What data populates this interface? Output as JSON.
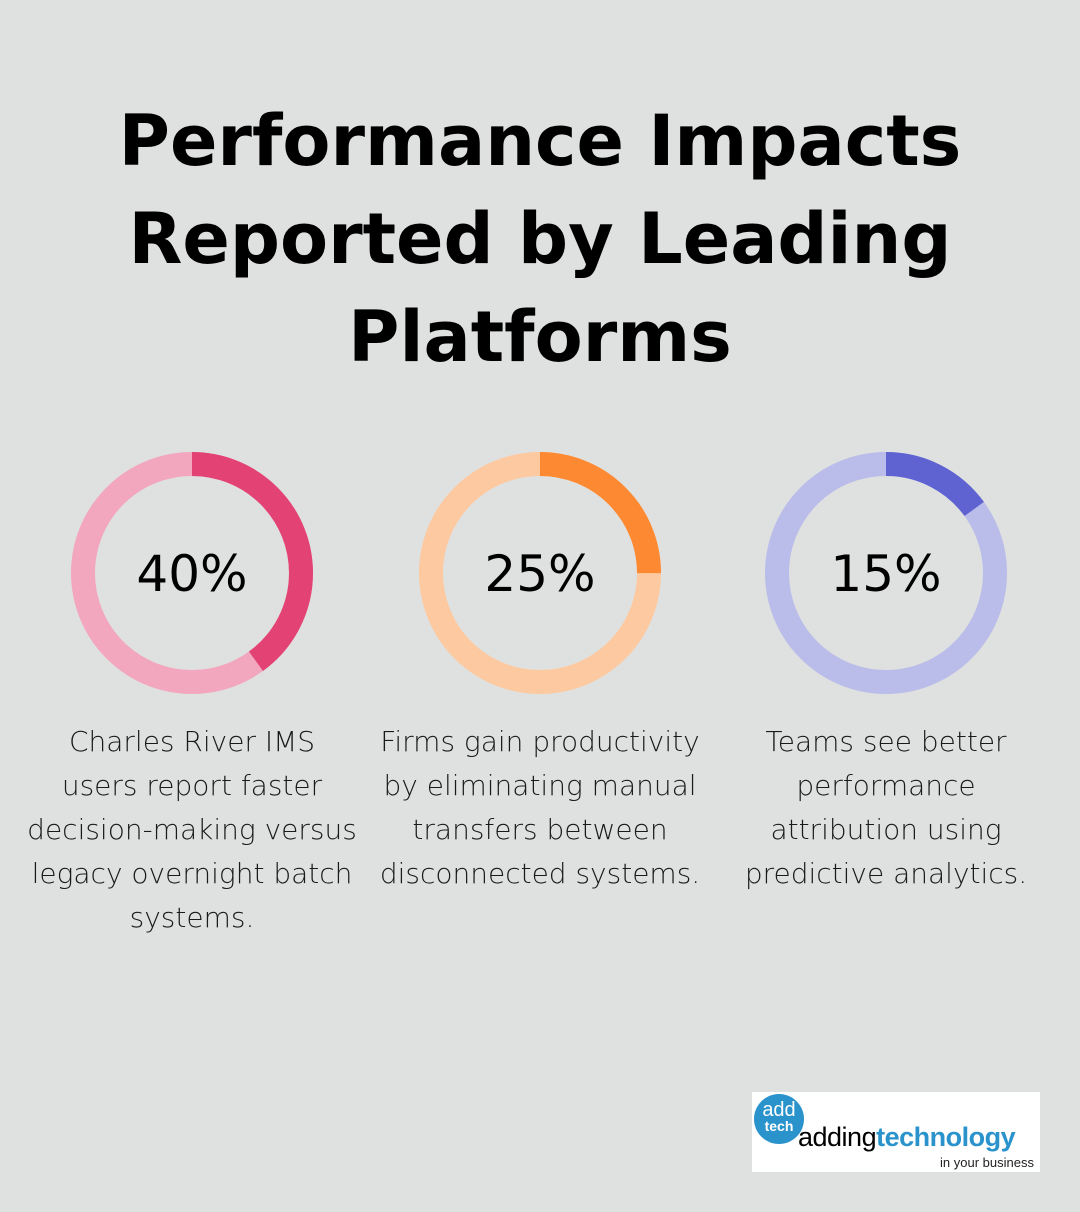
{
  "title": [
    "Performance Impacts",
    "Reported by Leading",
    "Platforms"
  ],
  "chart_data": [
    {
      "type": "pie",
      "variant": "donut",
      "value": 40,
      "label": "40%",
      "description": "Charles River IMS users report faster decision-making versus legacy overnight batch systems.",
      "color": "#e34275",
      "track_color": "#f2a7bf"
    },
    {
      "type": "pie",
      "variant": "donut",
      "value": 25,
      "label": "25%",
      "description": "Firms gain productivity by eliminating manual transfers between disconnected systems.",
      "color": "#fd8a32",
      "track_color": "#fdc9a0"
    },
    {
      "type": "pie",
      "variant": "donut",
      "value": 15,
      "label": "15%",
      "description": "Teams see better performance attribution using predictive analytics.",
      "color": "#5f63d1",
      "track_color": "#babce9"
    }
  ],
  "logo": {
    "badge_top": "add",
    "badge_bottom": "tech",
    "word_plain": "adding",
    "word_bold": "technology",
    "tagline": "in your business",
    "color": "#2b93cc"
  }
}
